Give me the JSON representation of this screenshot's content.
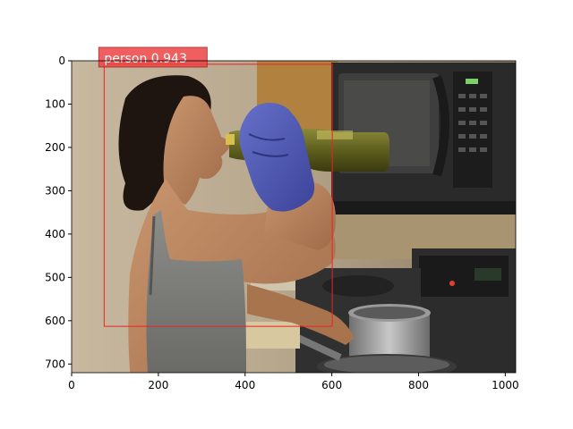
{
  "detection": {
    "label": "person 0.943",
    "box": {
      "x1": 75,
      "y1": 8,
      "x2": 601,
      "y2": 613
    },
    "box_color": "#ee2222",
    "label_bg": "#ee4444"
  },
  "image": {
    "width": 1024,
    "height": 720
  },
  "axes": {
    "x_ticks": [
      0,
      200,
      400,
      600,
      800,
      1000
    ],
    "y_ticks": [
      0,
      100,
      200,
      300,
      400,
      500,
      600,
      700
    ],
    "x_tick_labels": [
      "0",
      "200",
      "400",
      "600",
      "800",
      "1000"
    ],
    "y_tick_labels": [
      "0",
      "100",
      "200",
      "300",
      "400",
      "500",
      "600",
      "700"
    ]
  },
  "scene": {
    "bottle_label": "wine bottle",
    "appliance": "microwave",
    "stove": "stove"
  }
}
